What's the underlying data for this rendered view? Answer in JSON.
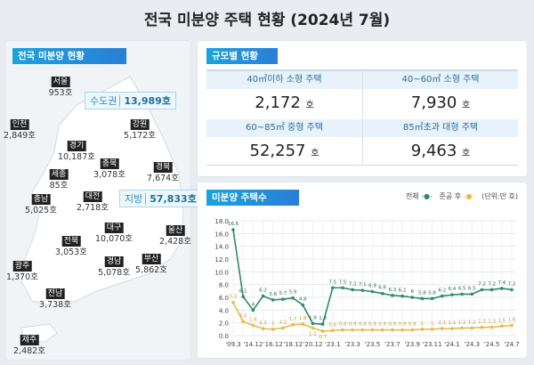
{
  "title": "전국 미분양 주택 현황  (2024년 7월)",
  "map_panel": {
    "header": "전국 미분양 현황",
    "capital": {
      "label": "수도권",
      "value": "13,989호"
    },
    "provinces": {
      "label": "지방",
      "value": "57,833호"
    },
    "regions": [
      {
        "name": "서울",
        "value": "953호"
      },
      {
        "name": "인천",
        "value": "2,849호"
      },
      {
        "name": "강원",
        "value": "5,172호"
      },
      {
        "name": "경기",
        "value": "10,187호"
      },
      {
        "name": "충북",
        "value": "3,078호"
      },
      {
        "name": "경북",
        "value": "7,674호"
      },
      {
        "name": "세종",
        "value": "85호"
      },
      {
        "name": "충남",
        "value": "5,025호"
      },
      {
        "name": "대전",
        "value": "2,718호"
      },
      {
        "name": "대구",
        "value": "10,070호"
      },
      {
        "name": "울산",
        "value": "2,428호"
      },
      {
        "name": "전북",
        "value": "3,053호"
      },
      {
        "name": "경남",
        "value": "5,078호"
      },
      {
        "name": "부산",
        "value": "5,862호"
      },
      {
        "name": "광주",
        "value": "1,370호"
      },
      {
        "name": "전남",
        "value": "3,738호"
      },
      {
        "name": "제주",
        "value": "2,482호"
      }
    ]
  },
  "size_panel": {
    "header": "규모별 현황",
    "unit": "호",
    "items": [
      {
        "label": "40㎡이하 소형 주택",
        "value": "2,172"
      },
      {
        "label": "40~60㎡ 소형 주택",
        "value": "7,930"
      },
      {
        "label": "60~85㎡ 중형 주택",
        "value": "52,257"
      },
      {
        "label": "85㎡초과 대형 주택",
        "value": "9,463"
      }
    ]
  },
  "chart_data": {
    "type": "line",
    "title": "미분양 주택수",
    "unit": "(단위:만 호)",
    "ylim": [
      0,
      18
    ],
    "yticks": [
      "0.0",
      "2.0",
      "4.0",
      "6.0",
      "8.0",
      "10.0",
      "12.0",
      "14.0",
      "16.0",
      "18.0"
    ],
    "grid": true,
    "legend": "top-right",
    "x": [
      "'09.3",
      "",
      "'14.12",
      "",
      "'16.12",
      "",
      "'18.12",
      "",
      "'20.12",
      "",
      "'23.1",
      "",
      "'23.3",
      "",
      "'23.5",
      "",
      "'23.7",
      "",
      "'23.9",
      "",
      "'23.11",
      "",
      "'24.1",
      "",
      "'24.3",
      "",
      "'24.5",
      "",
      "'24.7"
    ],
    "series": [
      {
        "name": "전체",
        "color": "#2e8b68",
        "values": [
          16.6,
          6.1,
          4.0,
          6.2,
          5.6,
          5.7,
          5.9,
          4.8,
          1.9,
          1.8,
          7.5,
          7.5,
          7.2,
          7.1,
          6.9,
          6.6,
          6.3,
          6.2,
          6.0,
          5.8,
          5.8,
          6.2,
          6.4,
          6.5,
          6.5,
          7.2,
          7.2,
          7.4,
          7.2
        ]
      },
      {
        "name": "준공 후",
        "color": "#e8b94a",
        "values": [
          5.2,
          2.2,
          1.6,
          1.1,
          1.0,
          1.2,
          1.7,
          1.8,
          1.2,
          0.7,
          0.8,
          0.9,
          0.9,
          0.9,
          0.9,
          0.9,
          0.9,
          0.9,
          0.9,
          1.0,
          1.0,
          1.1,
          1.1,
          1.2,
          1.2,
          1.3,
          1.3,
          1.5,
          1.6
        ]
      }
    ]
  }
}
